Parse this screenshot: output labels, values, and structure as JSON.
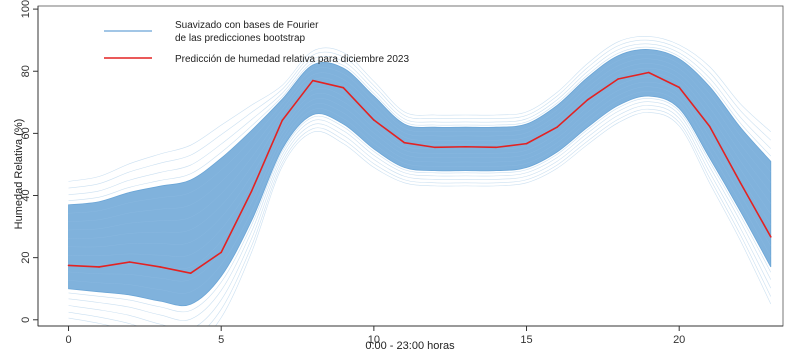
{
  "chart_data": {
    "type": "line",
    "xlabel": "0:00 - 23:00 horas",
    "ylabel": "Humedad Relativa (%)",
    "xlim": [
      -1,
      23.4
    ],
    "ylim": [
      -2,
      101
    ],
    "xticks": [
      0,
      5,
      10,
      15,
      20
    ],
    "yticks": [
      0,
      20,
      40,
      60,
      80,
      100
    ],
    "legend_position": "top-left",
    "legend": [
      {
        "line1": "Suavizado con bases de Fourier",
        "line2": " de las predicciones bootstrap",
        "color": "#6aa5d6"
      },
      {
        "line1": "Predicción de humedad relativa para diciembre 2023",
        "line2": "",
        "color": "#e32222"
      }
    ],
    "series": [
      {
        "name": "Predicción de humedad relativa para diciembre 2023",
        "color": "#e32222",
        "x": [
          0,
          1,
          2,
          3,
          4,
          5,
          6,
          7,
          8,
          9,
          10,
          11,
          12,
          13,
          14,
          15,
          16,
          17,
          18,
          19,
          20,
          21,
          22,
          23
        ],
        "y": [
          17.5,
          17,
          18.6,
          17,
          15,
          21.7,
          41.5,
          64.2,
          77,
          74.7,
          64.3,
          57,
          55.5,
          55.7,
          55.5,
          56.7,
          62,
          70.8,
          77.5,
          79.6,
          74.8,
          62.2,
          44.2,
          26.7
        ]
      },
      {
        "name": "Suavizado con bases de Fourier de las predicciones bootstrap",
        "color": "#6aa5d6",
        "type": "band",
        "x": [
          0,
          1,
          2,
          3,
          4,
          5,
          6,
          7,
          8,
          9,
          10,
          11,
          12,
          13,
          14,
          15,
          16,
          17,
          18,
          19,
          20,
          21,
          22,
          23
        ],
        "lower": [
          10,
          9,
          8,
          6,
          5,
          14,
          32,
          55,
          66,
          63,
          55,
          49,
          48,
          48,
          48,
          49,
          54,
          62,
          69,
          72,
          68,
          52,
          35,
          17
        ],
        "upper": [
          37,
          38,
          41,
          43,
          45,
          52,
          61,
          71,
          82,
          81,
          72,
          63,
          62,
          62,
          62,
          63,
          69,
          78,
          85,
          87,
          84,
          75,
          62,
          51
        ]
      }
    ]
  }
}
